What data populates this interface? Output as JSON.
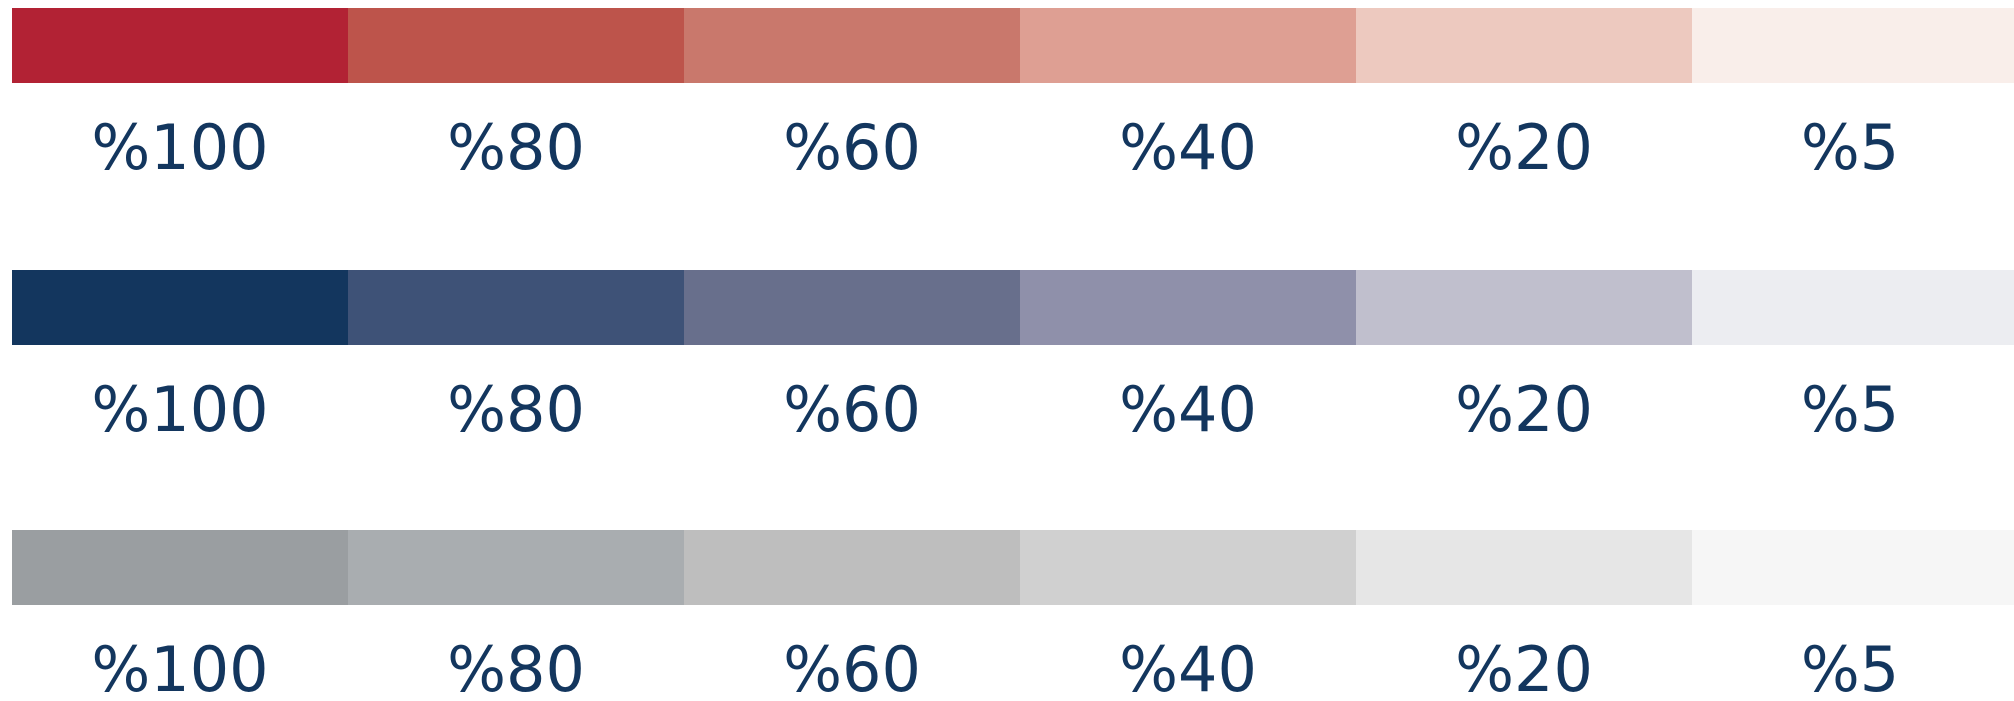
{
  "palettes": [
    {
      "swatches": [
        {
          "label": "%100",
          "color": "#b22234"
        },
        {
          "label": "%80",
          "color": "#bd544b"
        },
        {
          "label": "%60",
          "color": "#c9786c"
        },
        {
          "label": "%40",
          "color": "#de9f93"
        },
        {
          "label": "%20",
          "color": "#edc9bf"
        },
        {
          "label": "%5",
          "color": "#f9eeea"
        }
      ]
    },
    {
      "swatches": [
        {
          "label": "%100",
          "color": "#13365e"
        },
        {
          "label": "%80",
          "color": "#3e5277"
        },
        {
          "label": "%60",
          "color": "#686f8c"
        },
        {
          "label": "%40",
          "color": "#8f90aa"
        },
        {
          "label": "%20",
          "color": "#c0bfcd"
        },
        {
          "label": "%5",
          "color": "#ecedf1"
        }
      ]
    },
    {
      "swatches": [
        {
          "label": "%100",
          "color": "#9a9ea1"
        },
        {
          "label": "%80",
          "color": "#a9adb0"
        },
        {
          "label": "%60",
          "color": "#bebebe"
        },
        {
          "label": "%40",
          "color": "#d0d0d0"
        },
        {
          "label": "%20",
          "color": "#e6e6e6"
        },
        {
          "label": "%5",
          "color": "#f6f6f6"
        }
      ]
    }
  ]
}
